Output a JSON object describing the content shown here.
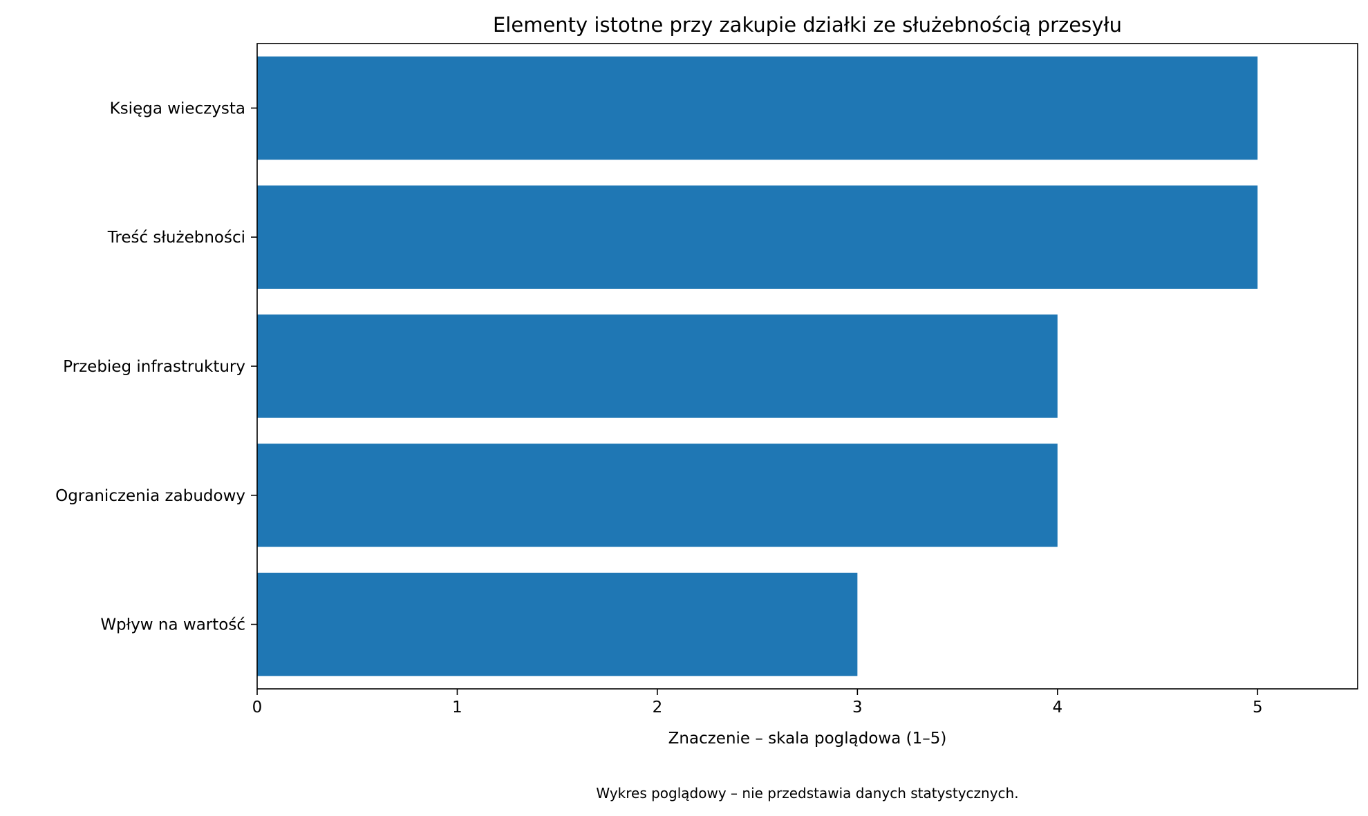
{
  "chart_data": {
    "type": "bar",
    "orientation": "horizontal",
    "title": "Elementy istotne przy zakupie działki ze służebnością przesyłu",
    "xlabel": "Znaczenie – skala poglądowa (1–5)",
    "ylabel": "",
    "categories": [
      "Księga wieczysta",
      "Treść służebności",
      "Przebieg infrastruktury",
      "Ograniczenia zabudowy",
      "Wpływ na wartość"
    ],
    "values": [
      5,
      5,
      4,
      4,
      3
    ],
    "xlim": [
      0,
      5.5
    ],
    "xticks": [
      0,
      1,
      2,
      3,
      4,
      5
    ],
    "xtick_labels": [
      "0",
      "1",
      "2",
      "3",
      "4",
      "5"
    ],
    "grid": false,
    "legend": "none",
    "bar_color": "#1f77b4",
    "footnote": "Wykres poglądowy – nie przedstawia danych statystycznych."
  }
}
